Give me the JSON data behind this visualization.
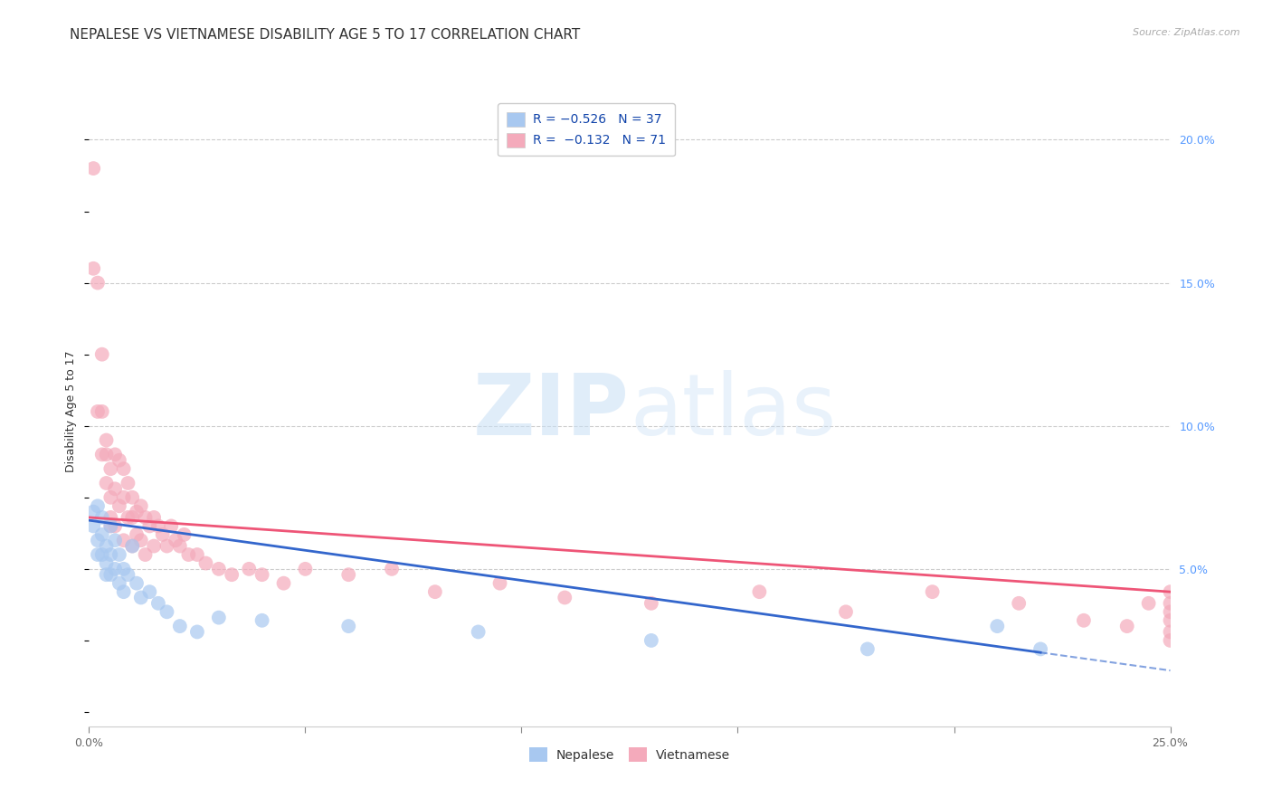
{
  "title": "NEPALESE VS VIETNAMESE DISABILITY AGE 5 TO 17 CORRELATION CHART",
  "source": "Source: ZipAtlas.com",
  "ylabel": "Disability Age 5 to 17",
  "xlim": [
    0.0,
    0.25
  ],
  "ylim": [
    -0.005,
    0.215
  ],
  "nepalese_R": -0.526,
  "nepalese_N": 37,
  "vietnamese_R": -0.132,
  "vietnamese_N": 71,
  "nepalese_color": "#A8C8F0",
  "vietnamese_color": "#F4AABB",
  "nepalese_line_color": "#3366CC",
  "vietnamese_line_color": "#EE5577",
  "nepalese_scatter_x": [
    0.001,
    0.001,
    0.002,
    0.002,
    0.002,
    0.003,
    0.003,
    0.003,
    0.004,
    0.004,
    0.004,
    0.005,
    0.005,
    0.005,
    0.006,
    0.006,
    0.007,
    0.007,
    0.008,
    0.008,
    0.009,
    0.01,
    0.011,
    0.012,
    0.014,
    0.016,
    0.018,
    0.021,
    0.025,
    0.03,
    0.04,
    0.06,
    0.09,
    0.13,
    0.18,
    0.21,
    0.22
  ],
  "nepalese_scatter_y": [
    0.07,
    0.065,
    0.072,
    0.06,
    0.055,
    0.068,
    0.062,
    0.055,
    0.058,
    0.052,
    0.048,
    0.065,
    0.055,
    0.048,
    0.06,
    0.05,
    0.055,
    0.045,
    0.05,
    0.042,
    0.048,
    0.058,
    0.045,
    0.04,
    0.042,
    0.038,
    0.035,
    0.03,
    0.028,
    0.033,
    0.032,
    0.03,
    0.028,
    0.025,
    0.022,
    0.03,
    0.022
  ],
  "vietnamese_scatter_x": [
    0.001,
    0.001,
    0.002,
    0.002,
    0.003,
    0.003,
    0.003,
    0.004,
    0.004,
    0.004,
    0.005,
    0.005,
    0.005,
    0.005,
    0.006,
    0.006,
    0.006,
    0.007,
    0.007,
    0.008,
    0.008,
    0.008,
    0.009,
    0.009,
    0.01,
    0.01,
    0.01,
    0.011,
    0.011,
    0.012,
    0.012,
    0.013,
    0.013,
    0.014,
    0.015,
    0.015,
    0.016,
    0.017,
    0.018,
    0.019,
    0.02,
    0.021,
    0.022,
    0.023,
    0.025,
    0.027,
    0.03,
    0.033,
    0.037,
    0.04,
    0.045,
    0.05,
    0.06,
    0.07,
    0.08,
    0.095,
    0.11,
    0.13,
    0.155,
    0.175,
    0.195,
    0.215,
    0.23,
    0.24,
    0.245,
    0.25,
    0.25,
    0.25,
    0.25,
    0.25,
    0.25
  ],
  "vietnamese_scatter_y": [
    0.19,
    0.155,
    0.15,
    0.105,
    0.125,
    0.105,
    0.09,
    0.09,
    0.08,
    0.095,
    0.085,
    0.075,
    0.068,
    0.065,
    0.09,
    0.078,
    0.065,
    0.088,
    0.072,
    0.085,
    0.075,
    0.06,
    0.08,
    0.068,
    0.075,
    0.068,
    0.058,
    0.07,
    0.062,
    0.072,
    0.06,
    0.068,
    0.055,
    0.065,
    0.068,
    0.058,
    0.065,
    0.062,
    0.058,
    0.065,
    0.06,
    0.058,
    0.062,
    0.055,
    0.055,
    0.052,
    0.05,
    0.048,
    0.05,
    0.048,
    0.045,
    0.05,
    0.048,
    0.05,
    0.042,
    0.045,
    0.04,
    0.038,
    0.042,
    0.035,
    0.042,
    0.038,
    0.032,
    0.03,
    0.038,
    0.035,
    0.032,
    0.028,
    0.025,
    0.038,
    0.042
  ],
  "background_color": "#ffffff",
  "grid_color": "#cccccc",
  "legend_R_color": "#1144AA",
  "title_fontsize": 11,
  "axis_label_fontsize": 9,
  "tick_fontsize": 9,
  "legend_fontsize": 10,
  "source_fontsize": 8
}
